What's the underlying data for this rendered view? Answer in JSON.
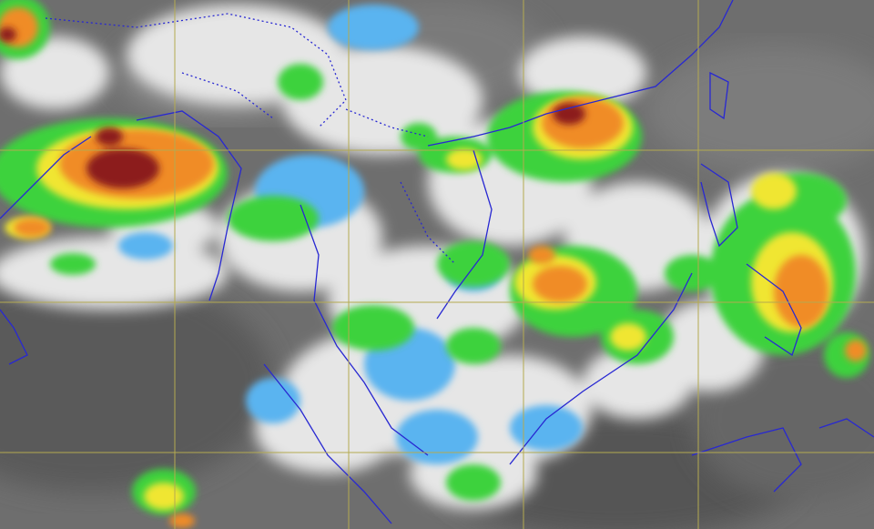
{
  "map": {
    "type": "infrared satellite cloud imagery (enhanced color)",
    "colors": {
      "background_gray": "#6e6e6e",
      "cloud_white": "#e6e6e6",
      "light_blue": "#5ab4f0",
      "green": "#3cd23c",
      "yellow": "#f0e632",
      "orange": "#f08c28",
      "red": "#e64632",
      "dark_red": "#8c1e1e",
      "coastline": "#2828d2",
      "grid": "#b4aa50"
    },
    "grid": true,
    "grid_lines": {
      "vertical_count": 4,
      "horizontal_count": 3
    }
  }
}
